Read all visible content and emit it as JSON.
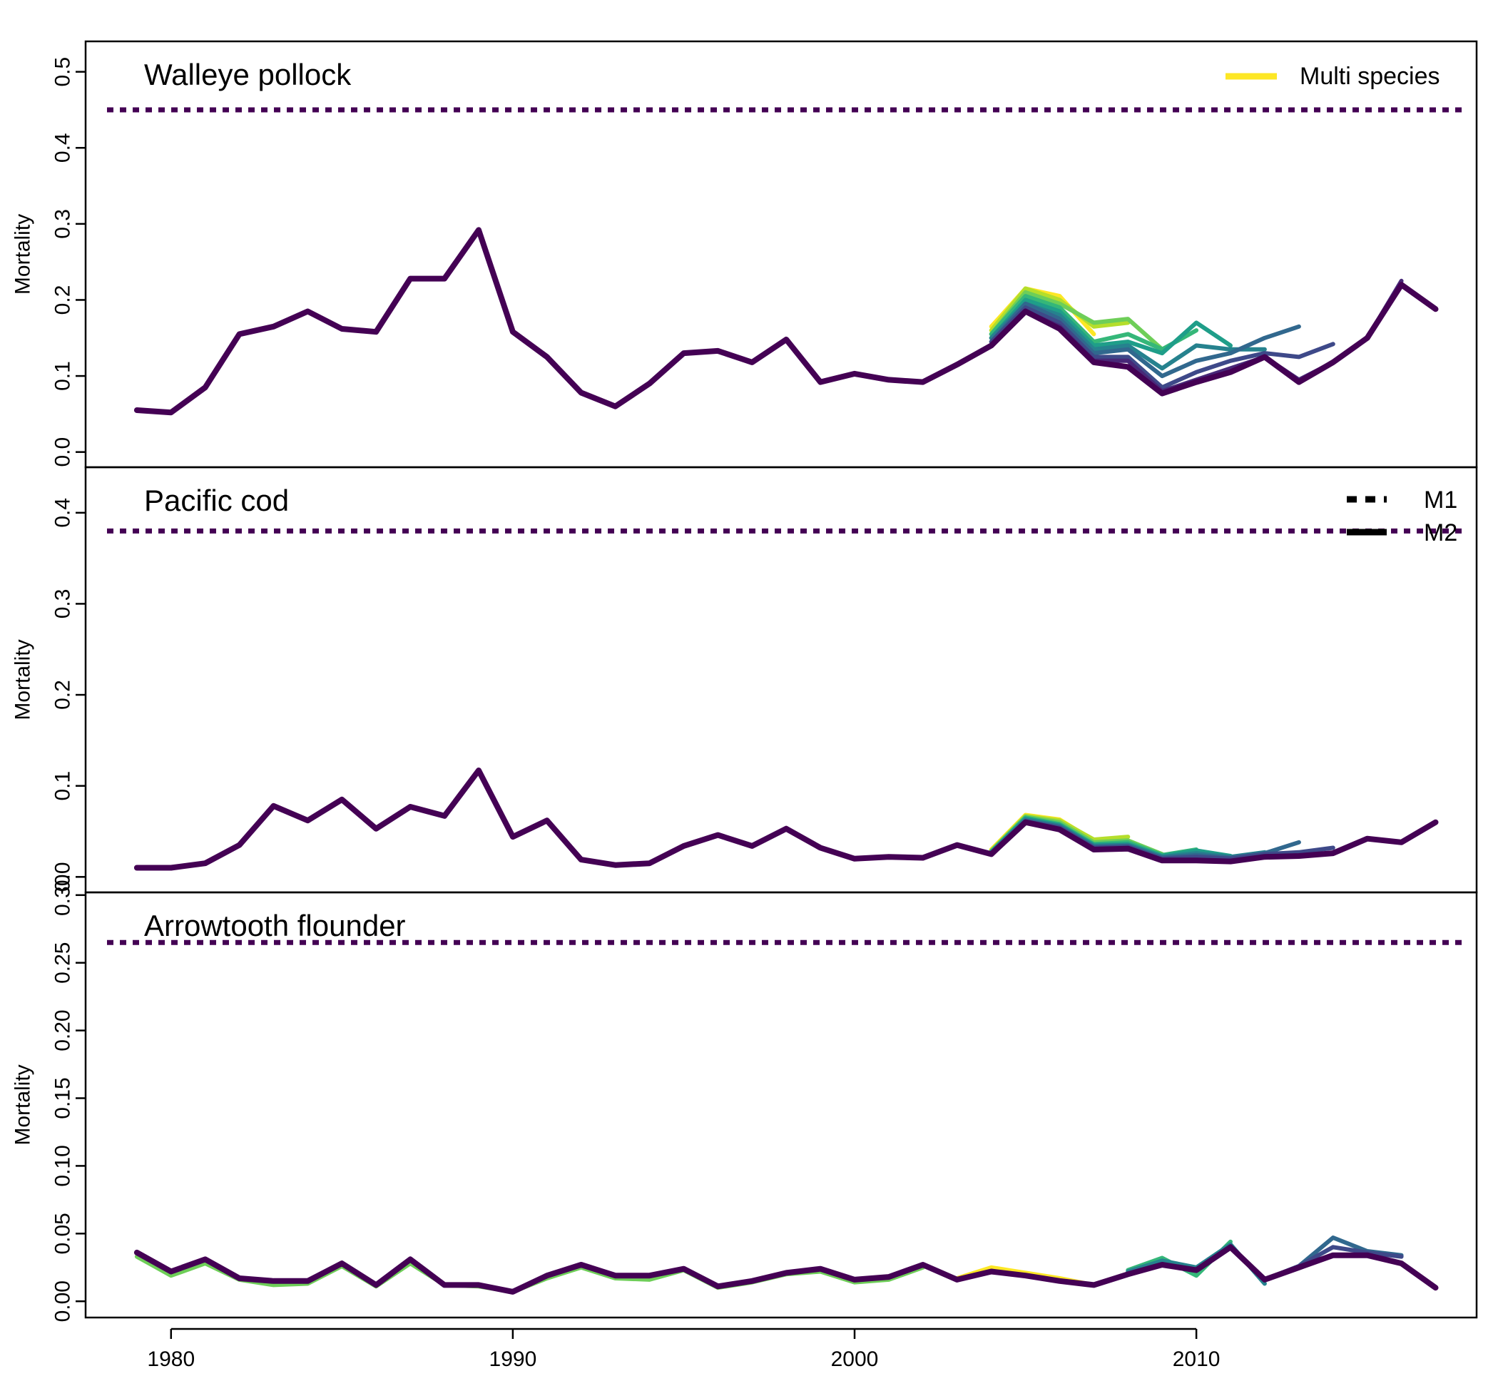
{
  "chart_data": [
    {
      "type": "line",
      "title": "Walleye pollock",
      "ylabel": "Mortality",
      "xlim": [
        1977.5,
        2018.2
      ],
      "ylim": [
        -0.02,
        0.54
      ],
      "y_ticks": [
        0.0,
        0.1,
        0.2,
        0.3,
        0.4,
        0.5
      ],
      "y_tick_labels": [
        "0.0",
        "0.1",
        "0.2",
        "0.3",
        "0.4",
        "0.5"
      ],
      "legend": {
        "position": "top-right",
        "entries": [
          {
            "label": "Multi species",
            "color": "#fde725",
            "style": "solid"
          }
        ]
      },
      "m1": {
        "y": 0.45,
        "color": "#440154"
      },
      "series": [
        {
          "color": "#fde725",
          "x": [
            2004,
            2005,
            2006,
            2007
          ],
          "y": [
            0.165,
            0.215,
            0.205,
            0.155
          ]
        },
        {
          "color": "#b5de2b",
          "x": [
            2004,
            2005,
            2006,
            2007,
            2008
          ],
          "y": [
            0.16,
            0.215,
            0.2,
            0.165,
            0.17
          ]
        },
        {
          "color": "#6ece58",
          "x": [
            2004,
            2005,
            2006,
            2007,
            2008,
            2009
          ],
          "y": [
            0.155,
            0.21,
            0.195,
            0.17,
            0.175,
            0.135
          ]
        },
        {
          "color": "#35b779",
          "x": [
            2004,
            2005,
            2006,
            2007,
            2008,
            2009,
            2010
          ],
          "y": [
            0.155,
            0.205,
            0.19,
            0.145,
            0.155,
            0.135,
            0.16
          ]
        },
        {
          "color": "#1f9e89",
          "x": [
            2004,
            2005,
            2006,
            2007,
            2008,
            2009,
            2010,
            2011
          ],
          "y": [
            0.15,
            0.2,
            0.185,
            0.14,
            0.145,
            0.13,
            0.17,
            0.14
          ]
        },
        {
          "color": "#26828e",
          "x": [
            2004,
            2005,
            2006,
            2007,
            2008,
            2009,
            2010,
            2011,
            2012
          ],
          "y": [
            0.15,
            0.195,
            0.18,
            0.135,
            0.14,
            0.11,
            0.14,
            0.135,
            0.135
          ]
        },
        {
          "color": "#31688e",
          "x": [
            2004,
            2005,
            2006,
            2007,
            2008,
            2009,
            2010,
            2011,
            2012,
            2013
          ],
          "y": [
            0.145,
            0.195,
            0.175,
            0.13,
            0.135,
            0.1,
            0.12,
            0.13,
            0.15,
            0.165
          ]
        },
        {
          "color": "#3e4989",
          "x": [
            2004,
            2005,
            2006,
            2007,
            2008,
            2009,
            2010,
            2011,
            2012,
            2013,
            2014
          ],
          "y": [
            0.145,
            0.19,
            0.17,
            0.125,
            0.125,
            0.085,
            0.105,
            0.12,
            0.13,
            0.125,
            0.142
          ]
        },
        {
          "color": "#482878",
          "x": [
            2004,
            2005,
            2006,
            2007,
            2008,
            2009,
            2010,
            2011,
            2012,
            2013,
            2014,
            2015,
            2016
          ],
          "y": [
            0.14,
            0.185,
            0.165,
            0.12,
            0.12,
            0.08,
            0.095,
            0.11,
            0.125,
            0.095,
            0.118,
            0.15,
            0.225
          ]
        },
        {
          "color": "#440154",
          "x": [
            1979,
            1980,
            1981,
            1982,
            1983,
            1984,
            1985,
            1986,
            1987,
            1988,
            1989,
            1990,
            1991,
            1992,
            1993,
            1994,
            1995,
            1996,
            1997,
            1998,
            1999,
            2000,
            2001,
            2002,
            2003,
            2004,
            2005,
            2006,
            2007,
            2008,
            2009,
            2010,
            2011,
            2012,
            2013,
            2014,
            2015,
            2016,
            2017
          ],
          "y": [
            0.055,
            0.052,
            0.085,
            0.155,
            0.165,
            0.185,
            0.162,
            0.158,
            0.228,
            0.228,
            0.292,
            0.158,
            0.125,
            0.078,
            0.06,
            0.09,
            0.13,
            0.133,
            0.118,
            0.148,
            0.092,
            0.103,
            0.095,
            0.092,
            0.115,
            0.14,
            0.185,
            0.162,
            0.118,
            0.112,
            0.077,
            0.092,
            0.105,
            0.125,
            0.092,
            0.118,
            0.15,
            0.22,
            0.188
          ]
        }
      ]
    },
    {
      "type": "line",
      "title": "Pacific cod",
      "ylabel": "Mortality",
      "xlim": [
        1977.5,
        2018.2
      ],
      "ylim": [
        -0.017,
        0.45
      ],
      "y_ticks": [
        0.0,
        0.1,
        0.2,
        0.3,
        0.4
      ],
      "y_tick_labels": [
        "0.0",
        "0.1",
        "0.2",
        "0.3",
        "0.4"
      ],
      "legend": {
        "position": "top-right",
        "entries": [
          {
            "label": "M1",
            "color": "#000000",
            "style": "dashed"
          },
          {
            "label": "M2",
            "color": "#000000",
            "style": "solid"
          }
        ]
      },
      "m1": {
        "y": 0.38,
        "color": "#440154"
      },
      "series": [
        {
          "color": "#fde725",
          "x": [
            2004,
            2005,
            2006,
            2007
          ],
          "y": [
            0.03,
            0.068,
            0.063,
            0.04
          ]
        },
        {
          "color": "#b5de2b",
          "x": [
            2004,
            2005,
            2006,
            2007,
            2008
          ],
          "y": [
            0.029,
            0.067,
            0.062,
            0.041,
            0.044
          ]
        },
        {
          "color": "#6ece58",
          "x": [
            2004,
            2005,
            2006,
            2007,
            2008,
            2009
          ],
          "y": [
            0.028,
            0.066,
            0.06,
            0.038,
            0.04,
            0.025
          ]
        },
        {
          "color": "#35b779",
          "x": [
            2004,
            2005,
            2006,
            2007,
            2008,
            2009,
            2010
          ],
          "y": [
            0.028,
            0.065,
            0.058,
            0.036,
            0.038,
            0.024,
            0.03
          ]
        },
        {
          "color": "#1f9e89",
          "x": [
            2004,
            2005,
            2006,
            2007,
            2008,
            2009,
            2010,
            2011
          ],
          "y": [
            0.027,
            0.064,
            0.057,
            0.035,
            0.036,
            0.023,
            0.029,
            0.023
          ]
        },
        {
          "color": "#26828e",
          "x": [
            2004,
            2005,
            2006,
            2007,
            2008,
            2009,
            2010,
            2011,
            2012
          ],
          "y": [
            0.027,
            0.063,
            0.056,
            0.034,
            0.035,
            0.022,
            0.026,
            0.022,
            0.027
          ]
        },
        {
          "color": "#31688e",
          "x": [
            2004,
            2005,
            2006,
            2007,
            2008,
            2009,
            2010,
            2011,
            2012,
            2013
          ],
          "y": [
            0.026,
            0.062,
            0.055,
            0.033,
            0.034,
            0.021,
            0.024,
            0.021,
            0.026,
            0.038
          ]
        },
        {
          "color": "#3e4989",
          "x": [
            2004,
            2005,
            2006,
            2007,
            2008,
            2009,
            2010,
            2011,
            2012,
            2013,
            2014
          ],
          "y": [
            0.026,
            0.061,
            0.054,
            0.032,
            0.033,
            0.02,
            0.022,
            0.02,
            0.025,
            0.027,
            0.032
          ]
        },
        {
          "color": "#440154",
          "x": [
            1979,
            1980,
            1981,
            1982,
            1983,
            1984,
            1985,
            1986,
            1987,
            1988,
            1989,
            1990,
            1991,
            1992,
            1993,
            1994,
            1995,
            1996,
            1997,
            1998,
            1999,
            2000,
            2001,
            2002,
            2003,
            2004,
            2005,
            2006,
            2007,
            2008,
            2009,
            2010,
            2011,
            2012,
            2013,
            2014,
            2015,
            2016,
            2017
          ],
          "y": [
            0.01,
            0.01,
            0.015,
            0.035,
            0.078,
            0.062,
            0.085,
            0.053,
            0.077,
            0.067,
            0.117,
            0.044,
            0.062,
            0.019,
            0.013,
            0.015,
            0.034,
            0.046,
            0.034,
            0.053,
            0.032,
            0.02,
            0.022,
            0.021,
            0.035,
            0.025,
            0.06,
            0.052,
            0.03,
            0.031,
            0.018,
            0.018,
            0.017,
            0.022,
            0.023,
            0.026,
            0.042,
            0.038,
            0.06
          ]
        }
      ]
    },
    {
      "type": "line",
      "title": "Arrowtooth flounder",
      "ylabel": "Mortality",
      "xlabel": "",
      "xlim": [
        1977.5,
        2018.2
      ],
      "ylim": [
        -0.012,
        0.302
      ],
      "x_ticks": [
        1980,
        1990,
        2000,
        2010
      ],
      "x_tick_labels": [
        "1980",
        "1990",
        "2000",
        "2010"
      ],
      "y_ticks": [
        0.0,
        0.05,
        0.1,
        0.15,
        0.2,
        0.25,
        0.3
      ],
      "y_tick_labels": [
        "0.00",
        "0.05",
        "0.10",
        "0.15",
        "0.20",
        "0.25",
        "0.30"
      ],
      "m1": {
        "y": 0.265,
        "color": "#440154"
      },
      "series": [
        {
          "color": "#fde725",
          "x": [
            2003,
            2004,
            2005,
            2006,
            2007
          ],
          "y": [
            0.017,
            0.025,
            0.021,
            0.017,
            0.012
          ]
        },
        {
          "color": "#6ece58",
          "x": [
            1979,
            1980,
            1981,
            1982,
            1983,
            1984,
            1985,
            1986,
            1987,
            1988,
            1989,
            1990,
            1991,
            1992,
            1993,
            1994,
            1995,
            1996,
            1997,
            1998,
            1999,
            2000,
            2001,
            2002
          ],
          "y": [
            0.033,
            0.019,
            0.028,
            0.016,
            0.012,
            0.013,
            0.026,
            0.011,
            0.028,
            0.012,
            0.011,
            0.007,
            0.017,
            0.025,
            0.017,
            0.016,
            0.023,
            0.01,
            0.014,
            0.02,
            0.022,
            0.014,
            0.016,
            0.025
          ]
        },
        {
          "color": "#35b779",
          "x": [
            2008,
            2009,
            2010,
            2011
          ],
          "y": [
            0.023,
            0.032,
            0.019,
            0.044
          ]
        },
        {
          "color": "#26828e",
          "x": [
            2008,
            2009,
            2010,
            2011,
            2012
          ],
          "y": [
            0.022,
            0.03,
            0.025,
            0.042,
            0.013
          ]
        },
        {
          "color": "#31688e",
          "x": [
            2012,
            2013,
            2014,
            2015,
            2016
          ],
          "y": [
            0.016,
            0.026,
            0.047,
            0.037,
            0.034
          ]
        },
        {
          "color": "#3e4989",
          "x": [
            2012,
            2013,
            2014,
            2015,
            2016
          ],
          "y": [
            0.016,
            0.026,
            0.04,
            0.036,
            0.033
          ]
        },
        {
          "color": "#440154",
          "x": [
            1979,
            1980,
            1981,
            1982,
            1983,
            1984,
            1985,
            1986,
            1987,
            1988,
            1989,
            1990,
            1991,
            1992,
            1993,
            1994,
            1995,
            1996,
            1997,
            1998,
            1999,
            2000,
            2001,
            2002,
            2003,
            2004,
            2005,
            2006,
            2007,
            2008,
            2009,
            2010,
            2011,
            2012,
            2013,
            2014,
            2015,
            2016,
            2017
          ],
          "y": [
            0.036,
            0.022,
            0.031,
            0.017,
            0.015,
            0.015,
            0.028,
            0.012,
            0.031,
            0.012,
            0.012,
            0.007,
            0.019,
            0.027,
            0.019,
            0.019,
            0.024,
            0.011,
            0.015,
            0.021,
            0.024,
            0.016,
            0.018,
            0.027,
            0.016,
            0.022,
            0.019,
            0.015,
            0.012,
            0.02,
            0.027,
            0.023,
            0.04,
            0.016,
            0.025,
            0.034,
            0.034,
            0.028,
            0.01
          ]
        }
      ]
    }
  ]
}
